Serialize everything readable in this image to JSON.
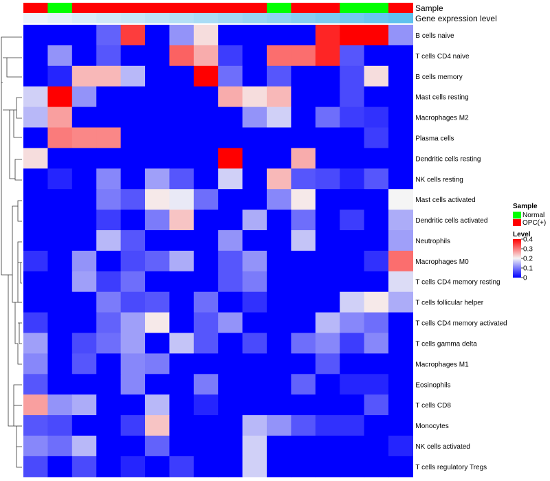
{
  "chart_data": {
    "type": "heatmap",
    "track_labels": [
      "Sample",
      "Gene expression level"
    ],
    "rows": [
      "B cells naive",
      "T cells CD4 naive",
      "B cells memory",
      "Mast cells resting",
      "Macrophages M2",
      "Plasma cells",
      "Dendritic cells resting",
      "NK cells resting",
      "Mast cells activated",
      "Dendritic cells activated",
      "Neutrophils",
      "Macrophages M0",
      "T cells CD4 memory resting",
      "T cells follicular helper",
      "T cells CD4 memory activated",
      "T cells gamma delta",
      "Macrophages M1",
      "Eosinophils",
      "T cells CD8",
      "Monocytes",
      "NK cells activated",
      "T cells regulatory  Tregs"
    ],
    "samples": [
      "OPC(+)",
      "Normal",
      "OPC(+)",
      "OPC(+)",
      "OPC(+)",
      "OPC(+)",
      "OPC(+)",
      "OPC(+)",
      "OPC(+)",
      "OPC(+)",
      "Normal",
      "OPC(+)",
      "OPC(+)",
      "Normal",
      "Normal",
      "OPC(+)"
    ],
    "expression_level": [
      0.03,
      0.06,
      0.09,
      0.12,
      0.15,
      0.18,
      0.21,
      0.24,
      0.27,
      0.3,
      0.33,
      0.36,
      0.39,
      0.42,
      0.45,
      0.48
    ],
    "values": [
      [
        0.0,
        0.0,
        0.0,
        0.08,
        0.35,
        0.0,
        0.12,
        0.22,
        0.0,
        0.0,
        0.0,
        0.0,
        0.37,
        0.4,
        0.4,
        0.12
      ],
      [
        0.0,
        0.12,
        0.0,
        0.07,
        0.0,
        0.0,
        0.32,
        0.26,
        0.05,
        0.0,
        0.31,
        0.31,
        0.37,
        0.07,
        0.0,
        0.0
      ],
      [
        0.0,
        0.03,
        0.25,
        0.25,
        0.15,
        0.0,
        0.0,
        0.4,
        0.09,
        0.0,
        0.07,
        0.0,
        0.0,
        0.06,
        0.22,
        0.0
      ],
      [
        0.17,
        0.4,
        0.12,
        0.0,
        0.0,
        0.0,
        0.0,
        0.0,
        0.26,
        0.22,
        0.25,
        0.0,
        0.0,
        0.06,
        0.0,
        0.0
      ],
      [
        0.15,
        0.27,
        0.0,
        0.0,
        0.0,
        0.0,
        0.0,
        0.0,
        0.0,
        0.12,
        0.17,
        0.0,
        0.09,
        0.05,
        0.04,
        0.0
      ],
      [
        0.0,
        0.3,
        0.29,
        0.29,
        0.0,
        0.0,
        0.0,
        0.0,
        0.0,
        0.0,
        0.0,
        0.0,
        0.0,
        0.0,
        0.05,
        0.0
      ],
      [
        0.22,
        0.0,
        0.0,
        0.0,
        0.0,
        0.0,
        0.0,
        0.0,
        0.4,
        0.0,
        0.0,
        0.26,
        0.0,
        0.0,
        0.0,
        0.0
      ],
      [
        0.0,
        0.03,
        0.0,
        0.11,
        0.0,
        0.13,
        0.07,
        0.0,
        0.17,
        0.0,
        0.25,
        0.07,
        0.06,
        0.03,
        0.07,
        0.0
      ],
      [
        0.0,
        0.0,
        0.0,
        0.1,
        0.07,
        0.21,
        0.19,
        0.09,
        0.0,
        0.0,
        0.11,
        0.21,
        0.0,
        0.0,
        0.0,
        0.2
      ],
      [
        0.0,
        0.0,
        0.0,
        0.05,
        0.0,
        0.1,
        0.24,
        0.0,
        0.0,
        0.14,
        0.0,
        0.09,
        0.0,
        0.05,
        0.0,
        0.14
      ],
      [
        0.0,
        0.0,
        0.0,
        0.15,
        0.07,
        0.0,
        0.0,
        0.0,
        0.12,
        0.0,
        0.0,
        0.16,
        0.0,
        0.0,
        0.0,
        0.13
      ],
      [
        0.04,
        0.0,
        0.12,
        0.0,
        0.06,
        0.08,
        0.14,
        0.0,
        0.07,
        0.12,
        0.0,
        0.0,
        0.0,
        0.0,
        0.04,
        0.31
      ],
      [
        0.0,
        0.0,
        0.13,
        0.05,
        0.09,
        0.0,
        0.0,
        0.0,
        0.07,
        0.1,
        0.0,
        0.0,
        0.0,
        0.0,
        0.0,
        0.18
      ],
      [
        0.0,
        0.0,
        0.0,
        0.1,
        0.06,
        0.07,
        0.0,
        0.09,
        0.0,
        0.04,
        0.0,
        0.0,
        0.0,
        0.17,
        0.21,
        0.14
      ],
      [
        0.05,
        0.0,
        0.0,
        0.08,
        0.13,
        0.21,
        0.0,
        0.07,
        0.12,
        0.0,
        0.0,
        0.0,
        0.15,
        0.11,
        0.09,
        0.0
      ],
      [
        0.13,
        0.0,
        0.06,
        0.09,
        0.13,
        0.0,
        0.16,
        0.07,
        0.0,
        0.06,
        0.0,
        0.09,
        0.11,
        0.05,
        0.11,
        0.0
      ],
      [
        0.11,
        0.0,
        0.07,
        0.0,
        0.11,
        0.1,
        0.0,
        0.0,
        0.0,
        0.0,
        0.0,
        0.0,
        0.07,
        0.0,
        0.0,
        0.0
      ],
      [
        0.07,
        0.0,
        0.0,
        0.0,
        0.11,
        0.0,
        0.0,
        0.1,
        0.0,
        0.0,
        0.0,
        0.08,
        0.0,
        0.03,
        0.03,
        0.0
      ],
      [
        0.27,
        0.12,
        0.14,
        0.0,
        0.0,
        0.15,
        0.0,
        0.03,
        0.0,
        0.0,
        0.0,
        0.0,
        0.0,
        0.0,
        0.07,
        0.0
      ],
      [
        0.07,
        0.06,
        0.0,
        0.0,
        0.05,
        0.24,
        0.0,
        0.0,
        0.0,
        0.15,
        0.12,
        0.07,
        0.04,
        0.04,
        0.0,
        0.0
      ],
      [
        0.11,
        0.09,
        0.15,
        0.0,
        0.0,
        0.08,
        0.0,
        0.0,
        0.0,
        0.17,
        0.0,
        0.0,
        0.0,
        0.0,
        0.0,
        0.03
      ],
      [
        0.06,
        0.0,
        0.06,
        0.0,
        0.03,
        0.0,
        0.05,
        0.0,
        0.0,
        0.17,
        0.0,
        0.0,
        0.0,
        0.0,
        0.0,
        0.0
      ]
    ],
    "legend": {
      "sample_title": "Sample",
      "sample_entries": [
        {
          "label": "Normal",
          "color": "#00ff00"
        },
        {
          "label": "OPC(+)",
          "color": "#ff0000"
        }
      ],
      "level_title": "Level",
      "level_ticks": [
        {
          "value": 0.4,
          "label": "0.4"
        },
        {
          "value": 0.3,
          "label": "0.3"
        },
        {
          "value": 0.2,
          "label": "0.2"
        },
        {
          "value": 0.1,
          "label": "0.1"
        },
        {
          "value": 0,
          "label": "0"
        }
      ],
      "placement": "right"
    },
    "color_scale": {
      "low": "#0000ff",
      "mid": "#f5f5f5",
      "high": "#ff0000",
      "min": 0,
      "mid_value": 0.2,
      "max": 0.4
    },
    "expression_scale": {
      "low": "#ecf3fb",
      "high": "#5fc1ee"
    },
    "dendrogram": "left"
  }
}
